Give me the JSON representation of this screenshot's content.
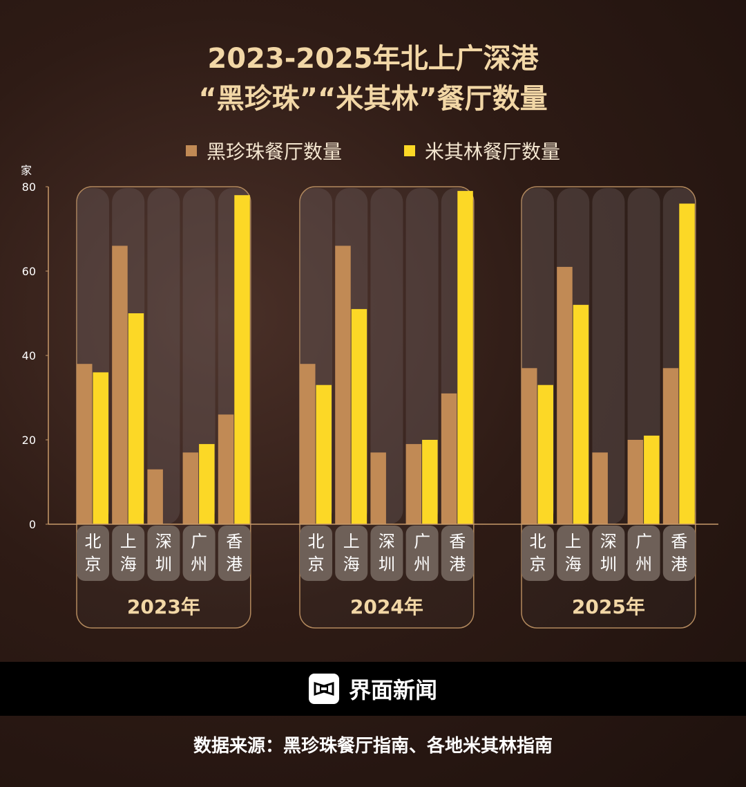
{
  "chart_data": {
    "type": "bar",
    "title": [
      "2023-2025年北上广深港",
      "“黑珍珠”“米其林”餐厅数量"
    ],
    "ylabel": "家",
    "ylim": [
      0,
      80
    ],
    "yticks": [
      "0",
      "20",
      "40",
      "60",
      "80"
    ],
    "groups": [
      "2023年",
      "2024年",
      "2025年"
    ],
    "categories": [
      "北京",
      "上海",
      "深圳",
      "广州",
      "香港"
    ],
    "series": [
      {
        "name": "黑珍珠餐厅数量",
        "color": "#c18a55",
        "values": [
          [
            38,
            66,
            13,
            17,
            26
          ],
          [
            38,
            66,
            17,
            19,
            31
          ],
          [
            37,
            61,
            17,
            20,
            37
          ]
        ]
      },
      {
        "name": "米其林餐厅数量",
        "color": "#fcd826",
        "values": [
          [
            36,
            50,
            0,
            19,
            78
          ],
          [
            33,
            51,
            0,
            20,
            79
          ],
          [
            33,
            52,
            0,
            21,
            76
          ]
        ]
      }
    ],
    "legend": "top"
  },
  "footer": {
    "brand": "界面新闻",
    "source": "数据来源：黑珍珠餐厅指南、各地米其林指南"
  }
}
